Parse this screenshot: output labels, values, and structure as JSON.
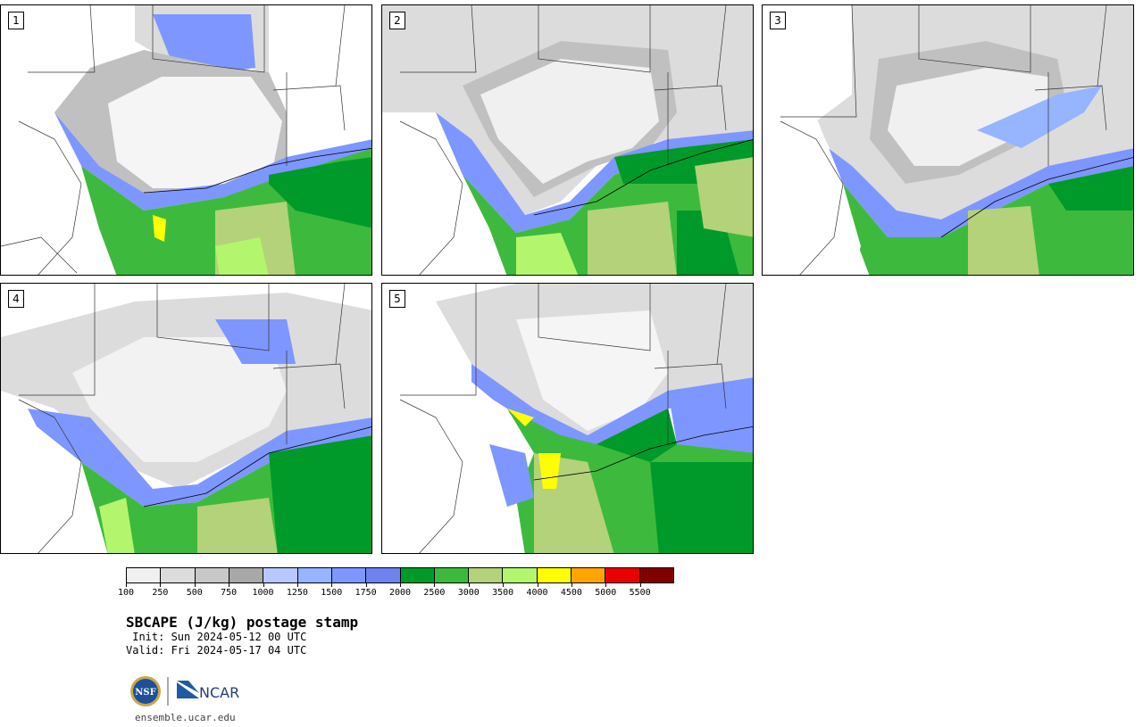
{
  "panels": [
    {
      "label": "1"
    },
    {
      "label": "2"
    },
    {
      "label": "3"
    },
    {
      "label": "4"
    },
    {
      "label": "5"
    }
  ],
  "colorbar": {
    "colors": [
      "#f0f0f0",
      "#dcdcdc",
      "#c8c8c8",
      "#a8a8a8",
      "#b8c8ff",
      "#96b4ff",
      "#7e96ff",
      "#6e82f0",
      "#009a2a",
      "#3dba3d",
      "#b4d27a",
      "#b4f56e",
      "#ffff00",
      "#ffa500",
      "#e60000",
      "#800000"
    ],
    "ticks": [
      "100",
      "250",
      "500",
      "750",
      "1000",
      "1250",
      "1500",
      "1750",
      "2000",
      "2500",
      "3000",
      "3500",
      "4000",
      "4500",
      "5000",
      "5500"
    ]
  },
  "palette": {
    "white_gray": "#f2f2f2",
    "light_gray": "#dcdcdc",
    "mid_gray": "#c0c0c0",
    "dark_gray": "#a8a8a8",
    "blue": "#7e96ff",
    "light_blue": "#a8bcff",
    "green": "#009a2a",
    "mid_green": "#3dba3d",
    "olive": "#b4d27a",
    "lime": "#b4f56e",
    "yellow": "#ffff00"
  },
  "title": "SBCAPE (J/kg) postage stamp",
  "init": " Init: Sun 2024-05-12 00 UTC",
  "valid": "Valid: Fri 2024-05-17 04 UTC",
  "logos": {
    "nsf": "NSF",
    "ncar": "NCAR"
  },
  "site": "ensemble.ucar.edu"
}
